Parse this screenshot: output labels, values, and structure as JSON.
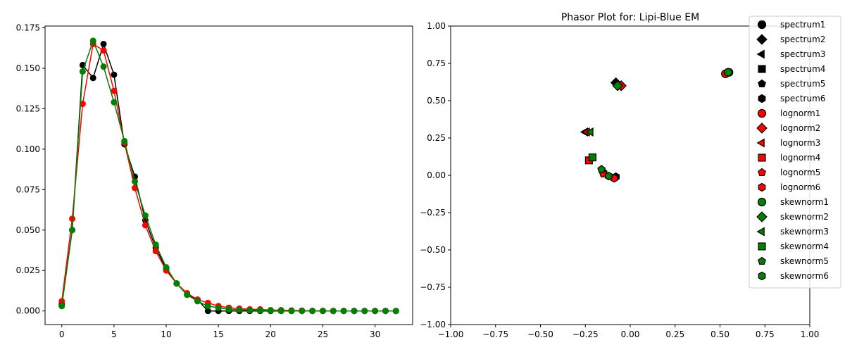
{
  "chart_data": [
    {
      "type": "line",
      "title": "",
      "xlabel": "",
      "ylabel": "",
      "xlim": [
        -1.6,
        33.6
      ],
      "ylim": [
        -0.0084,
        0.1761
      ],
      "xticks": [
        0,
        5,
        10,
        15,
        20,
        25,
        30
      ],
      "yticks": [
        0.0,
        0.025,
        0.05,
        0.075,
        0.1,
        0.125,
        0.15,
        0.175
      ],
      "ytick_labels": [
        "0.000",
        "0.025",
        "0.050",
        "0.075",
        "0.100",
        "0.125",
        "0.150",
        "0.175"
      ],
      "x": [
        0,
        1,
        2,
        3,
        4,
        5,
        6,
        7,
        8,
        9,
        10,
        11,
        12,
        13,
        14,
        15,
        16,
        17,
        18,
        19,
        20,
        21,
        22,
        23,
        24,
        25,
        26,
        27,
        28,
        29,
        30,
        31,
        32
      ],
      "series": [
        {
          "color": "#000000",
          "values": [
            0.004,
            0.05,
            0.152,
            0.144,
            0.165,
            0.146,
            0.103,
            0.083,
            0.056,
            0.039,
            0.026,
            0.017,
            0.01,
            0.007,
            0.0,
            0.0,
            0.0,
            0.0,
            0.0,
            0.0,
            0.0,
            0.0,
            0.0,
            0.0,
            0.0,
            0.0,
            0.0,
            0.0,
            0.0,
            0.0,
            0.0,
            0.0,
            0.0
          ]
        },
        {
          "color": "#ff0000",
          "values": [
            0.006,
            0.057,
            0.128,
            0.165,
            0.161,
            0.136,
            0.104,
            0.076,
            0.053,
            0.037,
            0.025,
            0.017,
            0.011,
            0.007,
            0.005,
            0.003,
            0.002,
            0.0015,
            0.001,
            0.001,
            0.0005,
            0.0005,
            0.0003,
            0.0002,
            0.0001,
            0.0001,
            0,
            0,
            0,
            0,
            0,
            0,
            0
          ]
        },
        {
          "color": "#008000",
          "values": [
            0.003,
            0.05,
            0.148,
            0.167,
            0.151,
            0.129,
            0.105,
            0.08,
            0.059,
            0.041,
            0.027,
            0.017,
            0.01,
            0.006,
            0.003,
            0.002,
            0.001,
            0.0008,
            0.0005,
            0.0003,
            0.0002,
            0.0001,
            0,
            0,
            0,
            0,
            0,
            0,
            0,
            0,
            0,
            0,
            0
          ]
        }
      ]
    },
    {
      "type": "scatter",
      "title": "Phasor Plot for: Lipi-Blue EM",
      "xlim": [
        -1.0,
        1.0
      ],
      "ylim": [
        -1.0,
        1.0
      ],
      "ticks": [
        -1.0,
        -0.75,
        -0.5,
        -0.25,
        0.0,
        0.25,
        0.5,
        0.75,
        1.0
      ],
      "tick_labels": [
        "−1.00",
        "−0.75",
        "−0.50",
        "−0.25",
        "0.00",
        "0.25",
        "0.50",
        "0.75",
        "1.00"
      ],
      "legend_position": "top-right",
      "points": [
        {
          "name": "spectrum1",
          "marker": "circle",
          "color": "#000000",
          "x": 0.55,
          "y": 0.69
        },
        {
          "name": "spectrum2",
          "marker": "diamond",
          "color": "#000000",
          "x": -0.08,
          "y": 0.62
        },
        {
          "name": "spectrum3",
          "marker": "triangle-left",
          "color": "#000000",
          "x": -0.25,
          "y": 0.29
        },
        {
          "name": "spectrum4",
          "marker": "square",
          "color": "#000000",
          "x": -0.21,
          "y": 0.12
        },
        {
          "name": "spectrum5",
          "marker": "pentagon",
          "color": "#000000",
          "x": -0.15,
          "y": 0.02
        },
        {
          "name": "spectrum6",
          "marker": "hexagon",
          "color": "#000000",
          "x": -0.08,
          "y": -0.01
        },
        {
          "name": "lognorm1",
          "marker": "circle",
          "color": "#ff0000",
          "x": 0.53,
          "y": 0.68
        },
        {
          "name": "lognorm2",
          "marker": "diamond",
          "color": "#ff0000",
          "x": -0.05,
          "y": 0.6
        },
        {
          "name": "lognorm3",
          "marker": "triangle-left",
          "color": "#ff0000",
          "x": -0.24,
          "y": 0.29
        },
        {
          "name": "lognorm4",
          "marker": "square",
          "color": "#ff0000",
          "x": -0.23,
          "y": 0.1
        },
        {
          "name": "lognorm5",
          "marker": "pentagon",
          "color": "#ff0000",
          "x": -0.15,
          "y": 0.01
        },
        {
          "name": "lognorm6",
          "marker": "hexagon",
          "color": "#ff0000",
          "x": -0.09,
          "y": -0.02
        },
        {
          "name": "skewnorm1",
          "marker": "circle",
          "color": "#008000",
          "x": 0.545,
          "y": 0.69
        },
        {
          "name": "skewnorm2",
          "marker": "diamond",
          "color": "#008000",
          "x": -0.07,
          "y": 0.6
        },
        {
          "name": "skewnorm3",
          "marker": "triangle-left",
          "color": "#008000",
          "x": -0.22,
          "y": 0.29
        },
        {
          "name": "skewnorm4",
          "marker": "square",
          "color": "#008000",
          "x": -0.21,
          "y": 0.12
        },
        {
          "name": "skewnorm5",
          "marker": "pentagon",
          "color": "#008000",
          "x": -0.16,
          "y": 0.04
        },
        {
          "name": "skewnorm6",
          "marker": "hexagon",
          "color": "#008000",
          "x": -0.12,
          "y": -0.005
        }
      ]
    }
  ]
}
